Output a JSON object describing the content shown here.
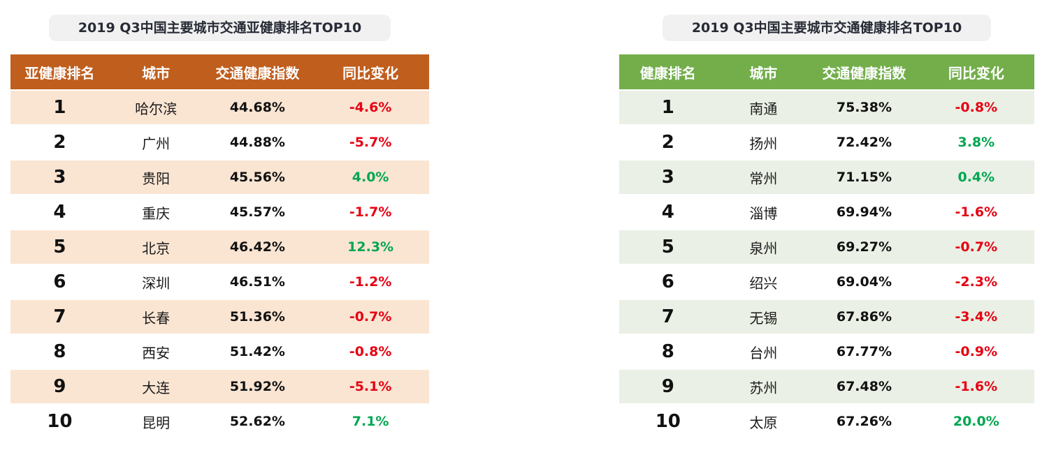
{
  "palette": {
    "positive_color": "#00A650",
    "negative_color": "#E60012",
    "pill_bg": "#F1F1F2",
    "title_color": "#272B35",
    "page_bg": "#FFFFFF"
  },
  "chart_data": [
    {
      "type": "table",
      "title": "2019 Q3中国主要城市交通亚健康排名TOP10",
      "header_bg": "#C05E1E",
      "stripe_bg": "#FAE5D3",
      "columns": [
        "亚健康排名",
        "城市",
        "交通健康指数",
        "同比变化"
      ],
      "rows": [
        [
          "1",
          "哈尔滨",
          "44.68%",
          "-4.6%"
        ],
        [
          "2",
          "广州",
          "44.88%",
          "-5.7%"
        ],
        [
          "3",
          "贵阳",
          "45.56%",
          "4.0%"
        ],
        [
          "4",
          "重庆",
          "45.57%",
          "-1.7%"
        ],
        [
          "5",
          "北京",
          "46.42%",
          "12.3%"
        ],
        [
          "6",
          "深圳",
          "46.51%",
          "-1.2%"
        ],
        [
          "7",
          "长春",
          "51.36%",
          "-0.7%"
        ],
        [
          "8",
          "西安",
          "51.42%",
          "-0.8%"
        ],
        [
          "9",
          "大连",
          "51.92%",
          "-5.1%"
        ],
        [
          "10",
          "昆明",
          "52.62%",
          "7.1%"
        ]
      ]
    },
    {
      "type": "table",
      "title": "2019 Q3中国主要城市交通健康排名TOP10",
      "header_bg": "#73AE4B",
      "stripe_bg": "#EAF0E5",
      "columns": [
        "健康排名",
        "城市",
        "交通健康指数",
        "同比变化"
      ],
      "rows": [
        [
          "1",
          "南通",
          "75.38%",
          "-0.8%"
        ],
        [
          "2",
          "扬州",
          "72.42%",
          "3.8%"
        ],
        [
          "3",
          "常州",
          "71.15%",
          "0.4%"
        ],
        [
          "4",
          "淄博",
          "69.94%",
          "-1.6%"
        ],
        [
          "5",
          "泉州",
          "69.27%",
          "-0.7%"
        ],
        [
          "6",
          "绍兴",
          "69.04%",
          "-2.3%"
        ],
        [
          "7",
          "无锡",
          "67.86%",
          "-3.4%"
        ],
        [
          "8",
          "台州",
          "67.77%",
          "-0.9%"
        ],
        [
          "9",
          "苏州",
          "67.48%",
          "-1.6%"
        ],
        [
          "10",
          "太原",
          "67.26%",
          "20.0%"
        ]
      ]
    }
  ]
}
